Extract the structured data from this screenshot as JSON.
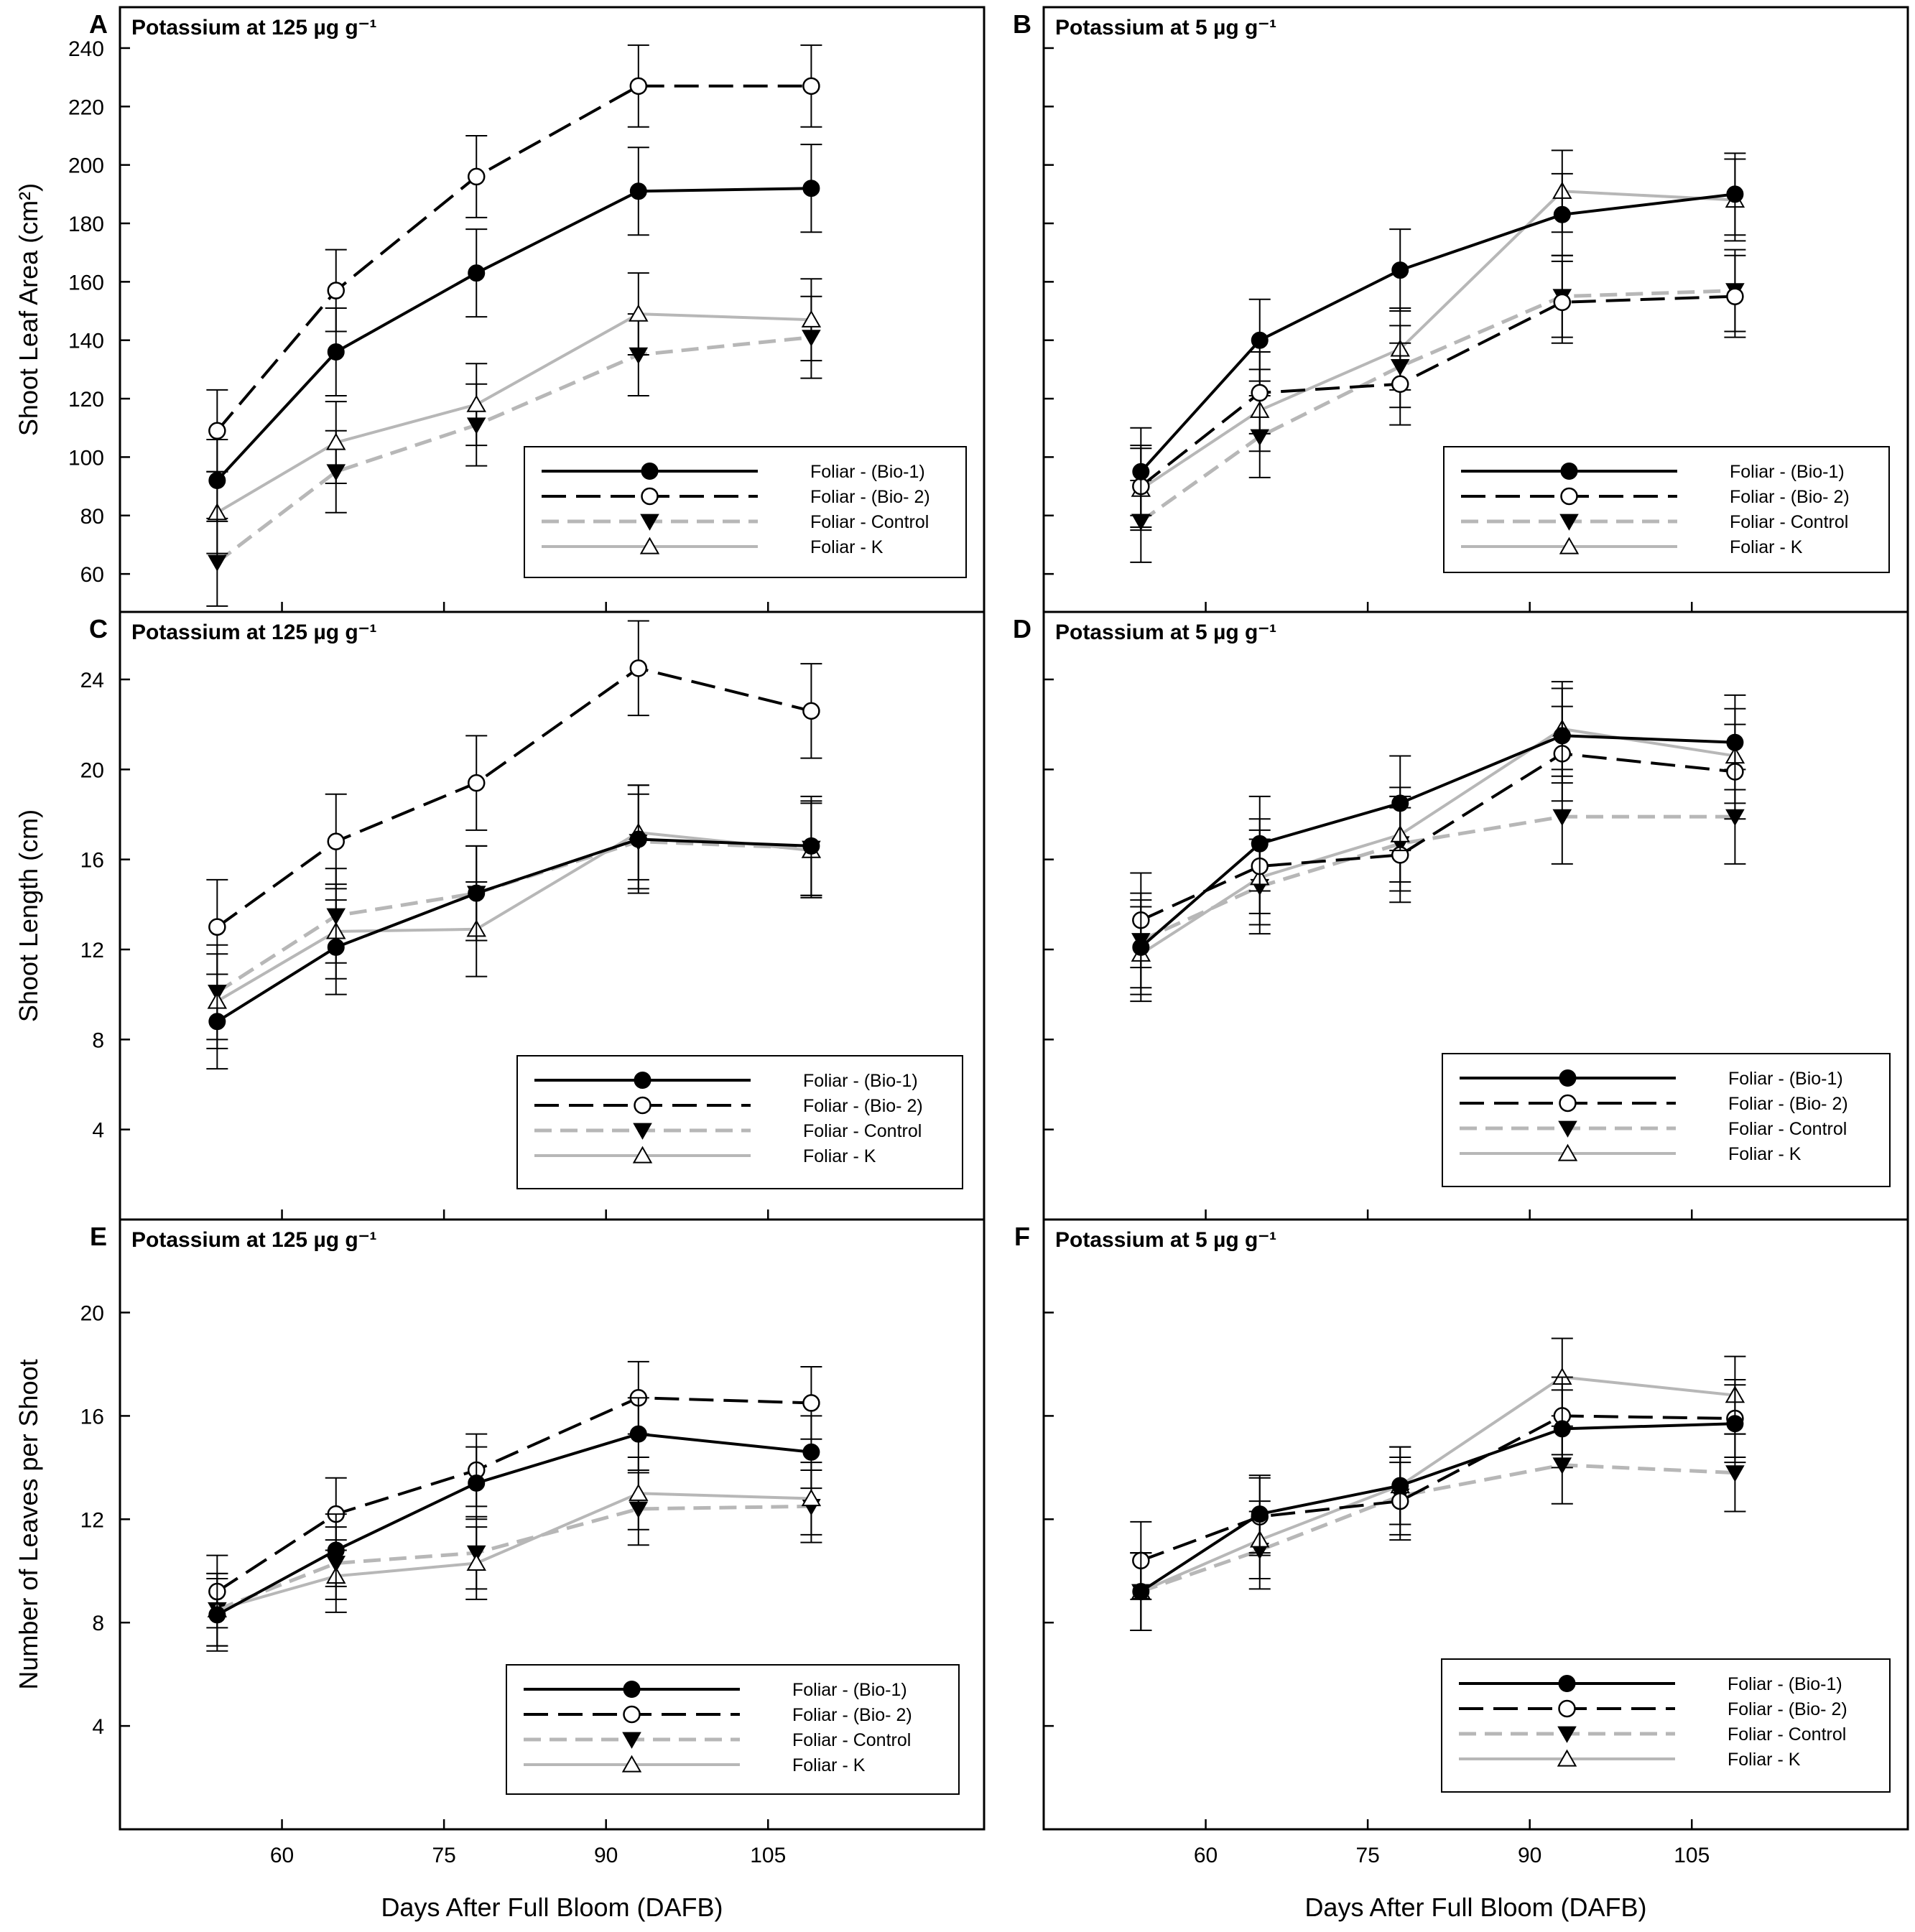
{
  "colors": {
    "bio1": "#000000",
    "bio2": "#000000",
    "control": "#b7b7b7",
    "k": "#b7b7b7",
    "frame": "#000000"
  },
  "figure": {
    "x_axis_title": "Days After Full Bloom (DAFB)",
    "y_axis_titles": {
      "leaf_area": "Shoot Leaf Area (cm²)",
      "length": "Shoot Length (cm)",
      "leaves": "Number of Leaves per Shoot"
    }
  },
  "chart_data": [
    {
      "panel": "A",
      "type": "line",
      "title": "Potassium at 125 µg g⁻¹",
      "ylabel": "Shoot Leaf Area (cm²)",
      "xlabel": "",
      "xlim": [
        45,
        125
      ],
      "ylim": [
        47,
        254
      ],
      "xticks": [
        60,
        75,
        90,
        105
      ],
      "yticks": [
        60,
        80,
        100,
        120,
        140,
        160,
        180,
        200,
        220,
        240
      ],
      "show_x_tick_labels": false,
      "show_y_tick_labels": true,
      "legend": "bottom-right",
      "x": [
        54,
        65,
        78,
        93,
        109
      ],
      "series": [
        {
          "key": "bio1",
          "name": "Foliar - (Bio-1)",
          "values": [
            92,
            136,
            163,
            191,
            192
          ],
          "errors": [
            14,
            15,
            15,
            15,
            15
          ]
        },
        {
          "key": "bio2",
          "name": "Foliar - (Bio- 2)",
          "values": [
            109,
            157,
            196,
            227,
            227
          ],
          "errors": [
            14,
            14,
            14,
            14,
            14
          ]
        },
        {
          "key": "control",
          "name": "Foliar - Control",
          "values": [
            64,
            95,
            111,
            135,
            141
          ],
          "errors": [
            15,
            14,
            14,
            14,
            14
          ]
        },
        {
          "key": "k",
          "name": "Foliar - K",
          "values": [
            81,
            105,
            118,
            149,
            147
          ],
          "errors": [
            14,
            14,
            14,
            14,
            14
          ]
        }
      ]
    },
    {
      "panel": "B",
      "type": "line",
      "title": "Potassium at 5 µg g⁻¹",
      "ylabel": "",
      "xlabel": "",
      "xlim": [
        45,
        125
      ],
      "ylim": [
        47,
        254
      ],
      "xticks": [
        60,
        75,
        90,
        105
      ],
      "yticks": [
        60,
        80,
        100,
        120,
        140,
        160,
        180,
        200,
        220,
        240
      ],
      "show_x_tick_labels": false,
      "show_y_tick_labels": false,
      "legend": "bottom-right",
      "x": [
        54,
        65,
        78,
        93,
        109
      ],
      "series": [
        {
          "key": "bio1",
          "name": "Foliar - (Bio-1)",
          "values": [
            95,
            140,
            164,
            183,
            190
          ],
          "errors": [
            15,
            14,
            14,
            14,
            14
          ]
        },
        {
          "key": "bio2",
          "name": "Foliar - (Bio- 2)",
          "values": [
            90,
            122,
            125,
            153,
            155
          ],
          "errors": [
            14,
            14,
            14,
            14,
            14
          ]
        },
        {
          "key": "control",
          "name": "Foliar - Control",
          "values": [
            78,
            107,
            131,
            155,
            157
          ],
          "errors": [
            14,
            14,
            14,
            14,
            14
          ]
        },
        {
          "key": "k",
          "name": "Foliar - K",
          "values": [
            89,
            116,
            137,
            191,
            188
          ],
          "errors": [
            14,
            14,
            14,
            14,
            14
          ]
        }
      ]
    },
    {
      "panel": "C",
      "type": "line",
      "title": "Potassium at 125 µg g⁻¹",
      "ylabel": "Shoot Length (cm)",
      "xlabel": "",
      "xlim": [
        45,
        125
      ],
      "ylim": [
        0,
        27.0
      ],
      "xticks": [
        60,
        75,
        90,
        105
      ],
      "yticks": [
        4,
        8,
        12,
        16,
        20,
        24
      ],
      "show_x_tick_labels": false,
      "show_y_tick_labels": true,
      "legend": "bottom-right",
      "x": [
        54,
        65,
        78,
        93,
        109
      ],
      "series": [
        {
          "key": "bio1",
          "name": "Foliar - (Bio-1)",
          "values": [
            8.8,
            12.1,
            14.5,
            16.9,
            16.6
          ],
          "errors": [
            2.1,
            2.1,
            2.1,
            2.4,
            2.2
          ]
        },
        {
          "key": "bio2",
          "name": "Foliar - (Bio- 2)",
          "values": [
            13.0,
            16.8,
            19.4,
            24.5,
            22.6
          ],
          "errors": [
            2.1,
            2.1,
            2.1,
            2.1,
            2.1
          ]
        },
        {
          "key": "control",
          "name": "Foliar - Control",
          "values": [
            10.1,
            13.5,
            14.5,
            16.8,
            16.5
          ],
          "errors": [
            2.1,
            2.1,
            2.1,
            2.1,
            2.1
          ]
        },
        {
          "key": "k",
          "name": "Foliar - K",
          "values": [
            9.7,
            12.8,
            12.9,
            17.2,
            16.4
          ],
          "errors": [
            2.1,
            2.1,
            2.1,
            2.1,
            2.1
          ]
        }
      ]
    },
    {
      "panel": "D",
      "type": "line",
      "title": "Potassium at 5 µg g⁻¹",
      "ylabel": "",
      "xlabel": "",
      "xlim": [
        45,
        125
      ],
      "ylim": [
        0,
        27.0
      ],
      "xticks": [
        60,
        75,
        90,
        105
      ],
      "yticks": [
        4,
        8,
        12,
        16,
        20,
        24
      ],
      "show_x_tick_labels": false,
      "show_y_tick_labels": false,
      "legend": "bottom-right",
      "x": [
        54,
        65,
        78,
        93,
        109
      ],
      "series": [
        {
          "key": "bio1",
          "name": "Foliar - (Bio-1)",
          "values": [
            12.1,
            16.7,
            18.5,
            21.5,
            21.2
          ],
          "errors": [
            2.1,
            2.1,
            2.1,
            2.1,
            2.1
          ]
        },
        {
          "key": "bio2",
          "name": "Foliar - (Bio- 2)",
          "values": [
            13.3,
            15.7,
            16.2,
            20.7,
            19.9
          ],
          "errors": [
            2.1,
            2.1,
            2.1,
            2.1,
            2.1
          ]
        },
        {
          "key": "control",
          "name": "Foliar - Control",
          "values": [
            12.4,
            14.8,
            16.7,
            17.9,
            17.9
          ],
          "errors": [
            2.1,
            2.1,
            2.1,
            2.1,
            2.1
          ]
        },
        {
          "key": "k",
          "name": "Foliar - K",
          "values": [
            11.8,
            15.2,
            17.1,
            21.8,
            20.6
          ],
          "errors": [
            2.1,
            2.1,
            2.1,
            2.1,
            2.1
          ]
        }
      ]
    },
    {
      "panel": "E",
      "type": "line",
      "title": "Potassium at 125 µg g⁻¹",
      "ylabel": "Number of Leaves per Shoot",
      "xlabel": "Days After Full Bloom (DAFB)",
      "xlim": [
        45,
        125
      ],
      "ylim": [
        0,
        23.6
      ],
      "xticks": [
        60,
        75,
        90,
        105
      ],
      "yticks": [
        4,
        8,
        12,
        16,
        20
      ],
      "show_x_tick_labels": true,
      "show_y_tick_labels": true,
      "legend": "bottom-right",
      "x": [
        54,
        65,
        78,
        93,
        109
      ],
      "series": [
        {
          "key": "bio1",
          "name": "Foliar - (Bio-1)",
          "values": [
            8.3,
            10.8,
            13.4,
            15.3,
            14.6
          ],
          "errors": [
            1.4,
            1.4,
            1.4,
            1.4,
            1.4
          ]
        },
        {
          "key": "bio2",
          "name": "Foliar - (Bio- 2)",
          "values": [
            9.2,
            12.2,
            13.9,
            16.7,
            16.5
          ],
          "errors": [
            1.4,
            1.4,
            1.4,
            1.4,
            1.4
          ]
        },
        {
          "key": "control",
          "name": "Foliar - Control",
          "values": [
            8.5,
            10.3,
            10.7,
            12.4,
            12.5
          ],
          "errors": [
            1.4,
            1.4,
            1.4,
            1.4,
            1.4
          ]
        },
        {
          "key": "k",
          "name": "Foliar - K",
          "values": [
            8.5,
            9.8,
            10.3,
            13.0,
            12.8
          ],
          "errors": [
            1.4,
            1.4,
            1.4,
            1.4,
            1.4
          ]
        }
      ]
    },
    {
      "panel": "F",
      "type": "line",
      "title": "Potassium at 5 µg g⁻¹",
      "ylabel": "",
      "xlabel": "Days After Full Bloom (DAFB)",
      "xlim": [
        45,
        125
      ],
      "ylim": [
        0,
        23.6
      ],
      "xticks": [
        60,
        75,
        90,
        105
      ],
      "yticks": [
        4,
        8,
        12,
        16,
        20
      ],
      "show_x_tick_labels": true,
      "show_y_tick_labels": false,
      "legend": "bottom-right",
      "x": [
        54,
        65,
        78,
        93,
        109
      ],
      "series": [
        {
          "key": "bio1",
          "name": "Foliar - (Bio-1)",
          "values": [
            9.2,
            12.2,
            13.3,
            15.5,
            15.7
          ],
          "errors": [
            1.5,
            1.5,
            1.5,
            1.5,
            1.5
          ]
        },
        {
          "key": "bio2",
          "name": "Foliar - (Bio- 2)",
          "values": [
            10.4,
            12.1,
            12.7,
            16.0,
            15.9
          ],
          "errors": [
            1.5,
            1.5,
            1.5,
            1.5,
            1.5
          ]
        },
        {
          "key": "control",
          "name": "Foliar - Control",
          "values": [
            9.2,
            10.8,
            12.9,
            14.1,
            13.8
          ],
          "errors": [
            1.5,
            1.5,
            1.5,
            1.5,
            1.5
          ]
        },
        {
          "key": "k",
          "name": "Foliar - K",
          "values": [
            9.2,
            11.2,
            13.3,
            17.5,
            16.8
          ],
          "errors": [
            1.5,
            1.5,
            1.5,
            1.5,
            1.5
          ]
        }
      ]
    }
  ]
}
